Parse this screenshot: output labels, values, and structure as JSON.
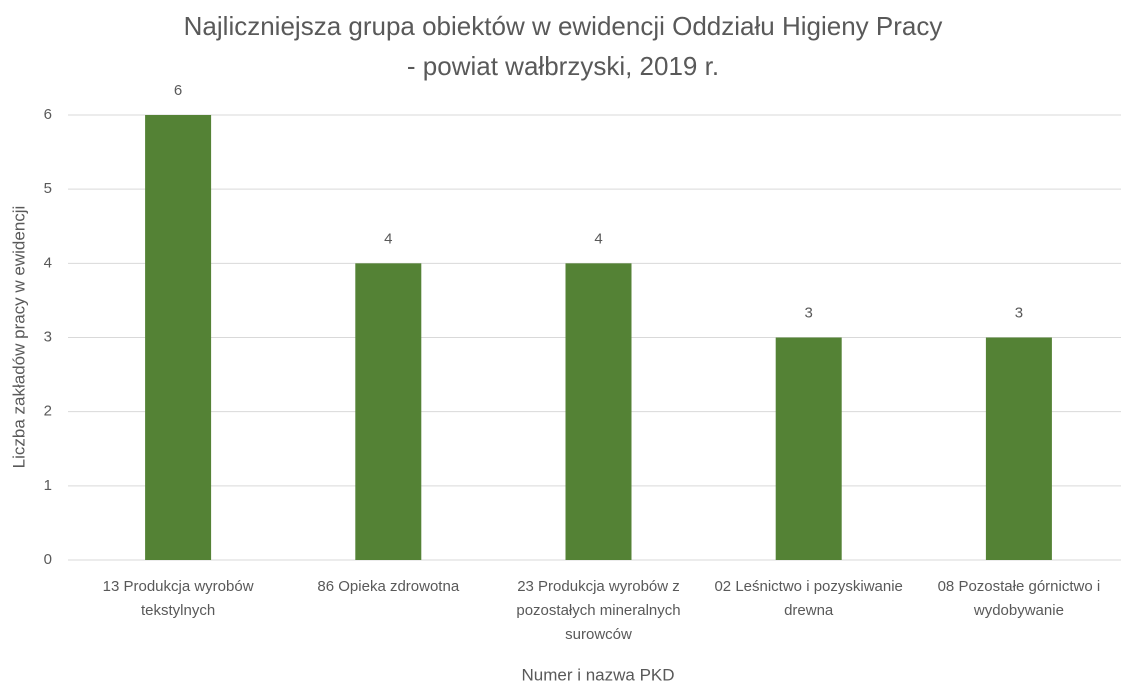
{
  "chart_data": {
    "type": "bar",
    "title": [
      "Najliczniejsza grupa obiektów w ewidencji Oddziału Higieny Pracy",
      "- powiat wałbrzyski, 2019 r."
    ],
    "x_label": "Numer i nazwa PKD",
    "y_label": "Liczba zakładów pracy w ewidencji",
    "categories": [
      "13 Produkcja wyrobów tekstylnych",
      "86 Opieka zdrowotna",
      "23 Produkcja wyrobów z pozostałych mineralnych surowców",
      "02 Leśnictwo i pozyskiwanie drewna",
      "08 Pozostałe górnictwo i wydobywanie"
    ],
    "values": [
      6,
      4,
      4,
      3,
      3
    ],
    "color": "#548235",
    "ylim": [
      0,
      6
    ],
    "yticks": [
      0,
      1,
      2,
      3,
      4,
      5,
      6
    ],
    "grid": true
  }
}
